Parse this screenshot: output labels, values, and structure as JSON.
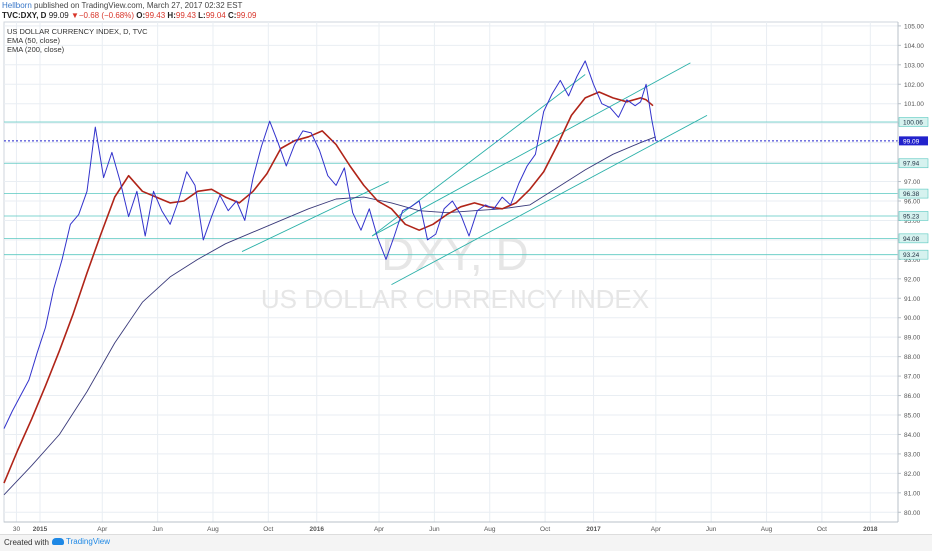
{
  "header": {
    "author": "Hellborn",
    "published": " published on TradingView.com, March 27, 2017 02:32 EST",
    "symbol": "TVC:DXY, D",
    "last": "99.09",
    "change_arrow": "▼",
    "change": "−0.68 (−0.68%)",
    "o_label": "O:",
    "o_value": "99.43",
    "h_label": "H:",
    "h_value": "99.43",
    "l_label": "L:",
    "l_value": "99.04",
    "c_label": "C:",
    "c_value": "99.09"
  },
  "legend": {
    "title": "US DOLLAR CURRENCY INDEX, D, TVC",
    "ema50": "EMA (50, close)",
    "ema200": "EMA (200, close)"
  },
  "watermark": {
    "symbol": "DXY, D",
    "name": "US DOLLAR CURRENCY INDEX"
  },
  "footer": {
    "created": "Created with",
    "brand": "TradingView"
  },
  "colors": {
    "price": "#3333cc",
    "ema50": "#b02418",
    "ema200": "#3a3a7a",
    "hline": "#58c8c0",
    "trend": "#2ab0a8",
    "last_price": "#2222cc",
    "grid": "#e9eef3",
    "axis_text": "#555555",
    "label_box": "#d6f2ef"
  },
  "chart_data": {
    "type": "line",
    "title": "US DOLLAR CURRENCY INDEX, D, TVC",
    "y_axis_side": "right",
    "ylim": [
      79.5,
      105.2
    ],
    "y_ticks": [
      80,
      81,
      82,
      83,
      84,
      85,
      86,
      87,
      88,
      89,
      90,
      91,
      92,
      93,
      94,
      95,
      96,
      97,
      98,
      99,
      100,
      101,
      102,
      103,
      104,
      105
    ],
    "x_labels": [
      "30",
      "2015",
      "Apr",
      "Jun",
      "Aug",
      "Oct",
      "2016",
      "Apr",
      "Jun",
      "Aug",
      "Oct",
      "2017",
      "Apr",
      "Jun",
      "Aug",
      "Oct",
      "2018"
    ],
    "x_label_t": [
      0.45,
      1.3,
      3.55,
      5.55,
      7.55,
      9.55,
      11.3,
      13.55,
      15.55,
      17.55,
      19.55,
      21.3,
      23.55,
      25.55,
      27.55,
      29.55,
      31.3
    ],
    "xlim_t": [
      0,
      32.3
    ],
    "series": [
      {
        "name": "US DOLLAR CURRENCY INDEX",
        "t": [
          0,
          0.3,
          0.6,
          0.9,
          1.2,
          1.5,
          1.8,
          2.1,
          2.4,
          2.7,
          3.0,
          3.3,
          3.6,
          3.9,
          4.2,
          4.5,
          4.8,
          5.1,
          5.4,
          5.7,
          6.0,
          6.3,
          6.6,
          6.9,
          7.2,
          7.5,
          7.8,
          8.1,
          8.4,
          8.7,
          9.0,
          9.3,
          9.6,
          9.9,
          10.2,
          10.5,
          10.8,
          11.1,
          11.4,
          11.7,
          12.0,
          12.3,
          12.6,
          12.9,
          13.2,
          13.5,
          13.8,
          14.1,
          14.4,
          14.7,
          15.0,
          15.3,
          15.6,
          15.9,
          16.2,
          16.5,
          16.8,
          17.1,
          17.4,
          17.7,
          18.0,
          18.3,
          18.6,
          18.9,
          19.2,
          19.5,
          19.8,
          20.1,
          20.4,
          20.7,
          21.0,
          21.3,
          21.6,
          21.9,
          22.2,
          22.5,
          22.8,
          23.0,
          23.2,
          23.4,
          23.55
        ],
        "values": [
          84.3,
          85.2,
          86.0,
          86.8,
          88.2,
          89.5,
          91.5,
          93.0,
          94.8,
          95.3,
          96.5,
          99.8,
          97.2,
          98.5,
          97.0,
          95.2,
          96.5,
          94.2,
          96.5,
          95.5,
          94.8,
          96.0,
          97.5,
          96.8,
          94.0,
          95.2,
          96.3,
          95.5,
          96.0,
          95.0,
          97.2,
          98.8,
          100.1,
          99.0,
          97.8,
          98.9,
          99.6,
          99.5,
          98.6,
          97.3,
          96.8,
          97.7,
          95.4,
          94.5,
          95.6,
          94.1,
          93.0,
          94.2,
          95.5,
          95.7,
          96.0,
          94.0,
          94.3,
          95.6,
          96.0,
          95.3,
          94.2,
          95.5,
          95.8,
          95.6,
          96.2,
          95.8,
          96.9,
          97.8,
          98.4,
          100.6,
          101.5,
          102.2,
          101.4,
          102.4,
          103.2,
          102.0,
          101.0,
          100.8,
          100.3,
          101.2,
          100.9,
          101.1,
          102.0,
          100.2,
          99.09
        ]
      },
      {
        "name": "EMA (50, close)",
        "t": [
          0,
          0.5,
          1.0,
          1.5,
          2.0,
          2.5,
          3.0,
          3.5,
          4.0,
          4.5,
          5.0,
          5.5,
          6.0,
          6.5,
          7.0,
          7.5,
          8.0,
          8.5,
          9.0,
          9.5,
          10.0,
          10.5,
          11.0,
          11.5,
          12.0,
          12.5,
          13.0,
          13.5,
          14.0,
          14.5,
          15.0,
          15.5,
          16.0,
          16.5,
          17.0,
          17.5,
          18.0,
          18.5,
          19.0,
          19.5,
          20.0,
          20.5,
          21.0,
          21.5,
          22.0,
          22.5,
          23.0,
          23.2,
          23.45
        ],
        "values": [
          81.5,
          83.2,
          84.8,
          86.5,
          88.3,
          90.2,
          92.3,
          94.3,
          96.2,
          97.3,
          96.5,
          96.2,
          95.9,
          96.0,
          96.5,
          96.6,
          96.2,
          95.9,
          96.5,
          97.4,
          98.7,
          99.1,
          99.3,
          99.6,
          98.9,
          97.8,
          96.8,
          96.0,
          95.6,
          94.8,
          94.5,
          94.8,
          95.3,
          95.7,
          95.9,
          95.7,
          95.6,
          95.9,
          96.6,
          97.5,
          98.9,
          100.4,
          101.3,
          101.6,
          101.3,
          101.1,
          101.3,
          101.2,
          100.9
        ]
      },
      {
        "name": "EMA (200, close)",
        "t": [
          0,
          1.0,
          2.0,
          3.0,
          4.0,
          5.0,
          6.0,
          7.0,
          8.0,
          9.0,
          10.0,
          11.0,
          12.0,
          13.0,
          14.0,
          15.0,
          16.0,
          17.0,
          18.0,
          19.0,
          20.0,
          21.0,
          22.0,
          23.0,
          23.55
        ],
        "values": [
          80.9,
          82.4,
          84.0,
          86.2,
          88.7,
          90.8,
          92.1,
          93.0,
          93.8,
          94.4,
          95.0,
          95.6,
          96.1,
          96.2,
          95.9,
          95.5,
          95.4,
          95.5,
          95.6,
          95.8,
          96.7,
          97.6,
          98.4,
          99.0,
          99.3
        ]
      }
    ],
    "horizontal_levels": [
      100.06,
      97.94,
      96.38,
      95.23,
      94.08,
      93.24
    ],
    "last_price": 99.09,
    "trendlines": [
      {
        "from": [
          8.6,
          93.4
        ],
        "to": [
          13.9,
          97.0
        ]
      },
      {
        "from": [
          13.3,
          94.2
        ],
        "to": [
          21.0,
          102.5
        ]
      },
      {
        "from": [
          13.3,
          94.2
        ],
        "to": [
          24.8,
          103.1
        ]
      },
      {
        "from": [
          14.0,
          91.7
        ],
        "to": [
          25.4,
          100.4
        ]
      }
    ]
  }
}
